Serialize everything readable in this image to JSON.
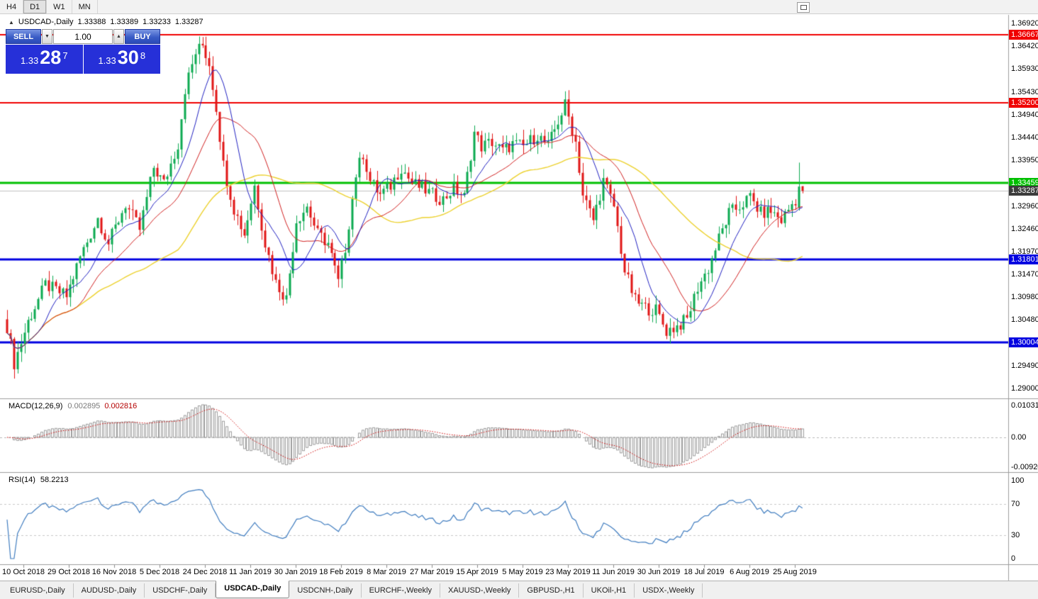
{
  "toolbar": {
    "timeframes": [
      {
        "label": "H4",
        "active": false
      },
      {
        "label": "D1",
        "active": true
      },
      {
        "label": "W1",
        "active": false
      },
      {
        "label": "MN",
        "active": false
      }
    ]
  },
  "chart_header": {
    "symbol": "USDCAD-,Daily",
    "open": "1.33388",
    "high": "1.33389",
    "low": "1.33233",
    "close": "1.33287"
  },
  "trade_panel": {
    "sell_label": "SELL",
    "buy_label": "BUY",
    "volume": "1.00",
    "volume_down_icon": "▼",
    "volume_up_icon": "▲",
    "sell_price": {
      "prefix": "1.33",
      "big": "28",
      "sup": "7"
    },
    "buy_price": {
      "prefix": "1.33",
      "big": "30",
      "sup": "8"
    }
  },
  "price_axis": [
    "1.36920",
    "1.36420",
    "1.35930",
    "1.35430",
    "1.34940",
    "1.34440",
    "1.33950",
    "1.33450",
    "1.32960",
    "1.32460",
    "1.31970",
    "1.31470",
    "1.30980",
    "1.30480",
    "1.29990",
    "1.29490",
    "1.29000"
  ],
  "levels": [
    {
      "label": "1.36667",
      "price": 1.36667,
      "color": "#f00000",
      "thickness": 2
    },
    {
      "label": "1.35200",
      "price": 1.352,
      "color": "#f00000",
      "thickness": 2
    },
    {
      "label": "1.33459",
      "price": 1.33459,
      "color": "#00c000",
      "thickness": 3
    },
    {
      "label": "1.31801",
      "price": 1.31801,
      "color": "#0000e0",
      "thickness": 3
    },
    {
      "label": "1.30004",
      "price": 1.30004,
      "color": "#0000e0",
      "thickness": 3
    }
  ],
  "bid": {
    "label": "1.33287",
    "price": 1.33287,
    "badge_color": "#3c3c3c",
    "line_color": "#c0c0c0"
  },
  "macd": {
    "name": "MACD(12,26,9)",
    "main_value": "0.002895",
    "signal_value": "0.002816",
    "axis": [
      "0.010311",
      "0.00",
      "-0.009203"
    ],
    "bar_color": "#9c9c9c",
    "signal_color": "#cc0000"
  },
  "rsi": {
    "name": "RSI(14)",
    "value": "58.2213",
    "axis": [
      "100",
      "70",
      "30",
      "0"
    ],
    "levels": [
      70,
      30
    ],
    "color": "#3f7cbf"
  },
  "date_axis": [
    "10 Oct 2018",
    "29 Oct 2018",
    "16 Nov 2018",
    "5 Dec 2018",
    "24 Dec 2018",
    "11 Jan 2019",
    "30 Jan 2019",
    "18 Feb 2019",
    "8 Mar 2019",
    "27 Mar 2019",
    "15 Apr 2019",
    "5 May 2019",
    "23 May 2019",
    "11 Jun 2019",
    "30 Jun 2019",
    "18 Jul 2019",
    "6 Aug 2019",
    "25 Aug 2019"
  ],
  "tabs": [
    {
      "label": "EURUSD-,Daily",
      "active": false
    },
    {
      "label": "AUDUSD-,Daily",
      "active": false
    },
    {
      "label": "USDCHF-,Daily",
      "active": false
    },
    {
      "label": "USDCAD-,Daily",
      "active": true
    },
    {
      "label": "USDCNH-,Daily",
      "active": false
    },
    {
      "label": "EURCHF-,Weekly",
      "active": false
    },
    {
      "label": "XAUUSD-,Weekly",
      "active": false
    },
    {
      "label": "GBPUSD-,H1",
      "active": false
    },
    {
      "label": "UKOil-,H1",
      "active": false
    },
    {
      "label": "USDX-,Weekly",
      "active": false
    }
  ],
  "chart_data": {
    "type": "candlestick",
    "symbol": "USDCAD",
    "timeframe": "Daily",
    "visible_price_range": [
      1.29,
      1.3692
    ],
    "candle_count": 229,
    "bull_color": "#0caa50",
    "bear_color": "#e01515",
    "close_anchors": [
      [
        0,
        1.3035
      ],
      [
        2,
        1.2955
      ],
      [
        6,
        1.3045
      ],
      [
        11,
        1.3125
      ],
      [
        17,
        1.31
      ],
      [
        21,
        1.3185
      ],
      [
        26,
        1.327
      ],
      [
        29,
        1.3215
      ],
      [
        34,
        1.33
      ],
      [
        38,
        1.3245
      ],
      [
        42,
        1.338
      ],
      [
        45,
        1.3345
      ],
      [
        49,
        1.343
      ],
      [
        51,
        1.355
      ],
      [
        54,
        1.3628
      ],
      [
        56,
        1.3645
      ],
      [
        58,
        1.3605
      ],
      [
        60,
        1.351
      ],
      [
        62,
        1.3385
      ],
      [
        65,
        1.329
      ],
      [
        68,
        1.3235
      ],
      [
        71,
        1.334
      ],
      [
        74,
        1.3215
      ],
      [
        77,
        1.313
      ],
      [
        80,
        1.3095
      ],
      [
        83,
        1.3265
      ],
      [
        86,
        1.3295
      ],
      [
        89,
        1.3235
      ],
      [
        92,
        1.3215
      ],
      [
        95,
        1.313
      ],
      [
        97,
        1.3205
      ],
      [
        100,
        1.3365
      ],
      [
        102,
        1.341
      ],
      [
        104,
        1.335
      ],
      [
        107,
        1.332
      ],
      [
        110,
        1.334
      ],
      [
        113,
        1.338
      ],
      [
        116,
        1.3345
      ],
      [
        119,
        1.3335
      ],
      [
        122,
        1.332
      ],
      [
        125,
        1.331
      ],
      [
        128,
        1.3335
      ],
      [
        131,
        1.3315
      ],
      [
        134,
        1.3455
      ],
      [
        136,
        1.3425
      ],
      [
        139,
        1.3435
      ],
      [
        142,
        1.3415
      ],
      [
        145,
        1.343
      ],
      [
        148,
        1.3425
      ],
      [
        152,
        1.345
      ],
      [
        155,
        1.3425
      ],
      [
        158,
        1.348
      ],
      [
        160,
        1.3515
      ],
      [
        163,
        1.3435
      ],
      [
        165,
        1.332
      ],
      [
        168,
        1.3265
      ],
      [
        171,
        1.335
      ],
      [
        174,
        1.3295
      ],
      [
        177,
        1.3155
      ],
      [
        180,
        1.309
      ],
      [
        183,
        1.3075
      ],
      [
        186,
        1.307
      ],
      [
        189,
        1.3025
      ],
      [
        192,
        1.3035
      ],
      [
        195,
        1.305
      ],
      [
        198,
        1.312
      ],
      [
        201,
        1.316
      ],
      [
        204,
        1.3225
      ],
      [
        207,
        1.328
      ],
      [
        210,
        1.3295
      ],
      [
        213,
        1.3315
      ],
      [
        216,
        1.328
      ],
      [
        219,
        1.3285
      ],
      [
        222,
        1.3265
      ],
      [
        225,
        1.33
      ],
      [
        228,
        1.333
      ]
    ],
    "last_candles": [
      {
        "o": 1.3292,
        "h": 1.339,
        "l": 1.3286,
        "c": 1.3338
      },
      {
        "o": 1.33388,
        "h": 1.33389,
        "l": 1.33233,
        "c": 1.33287
      }
    ],
    "moving_averages": [
      {
        "period": 50,
        "color": "#ecd12e",
        "width": 1.4
      },
      {
        "period": 21,
        "color": "#d02020",
        "width": 1
      },
      {
        "period": 10,
        "color": "#2020c0",
        "width": 1
      }
    ]
  }
}
